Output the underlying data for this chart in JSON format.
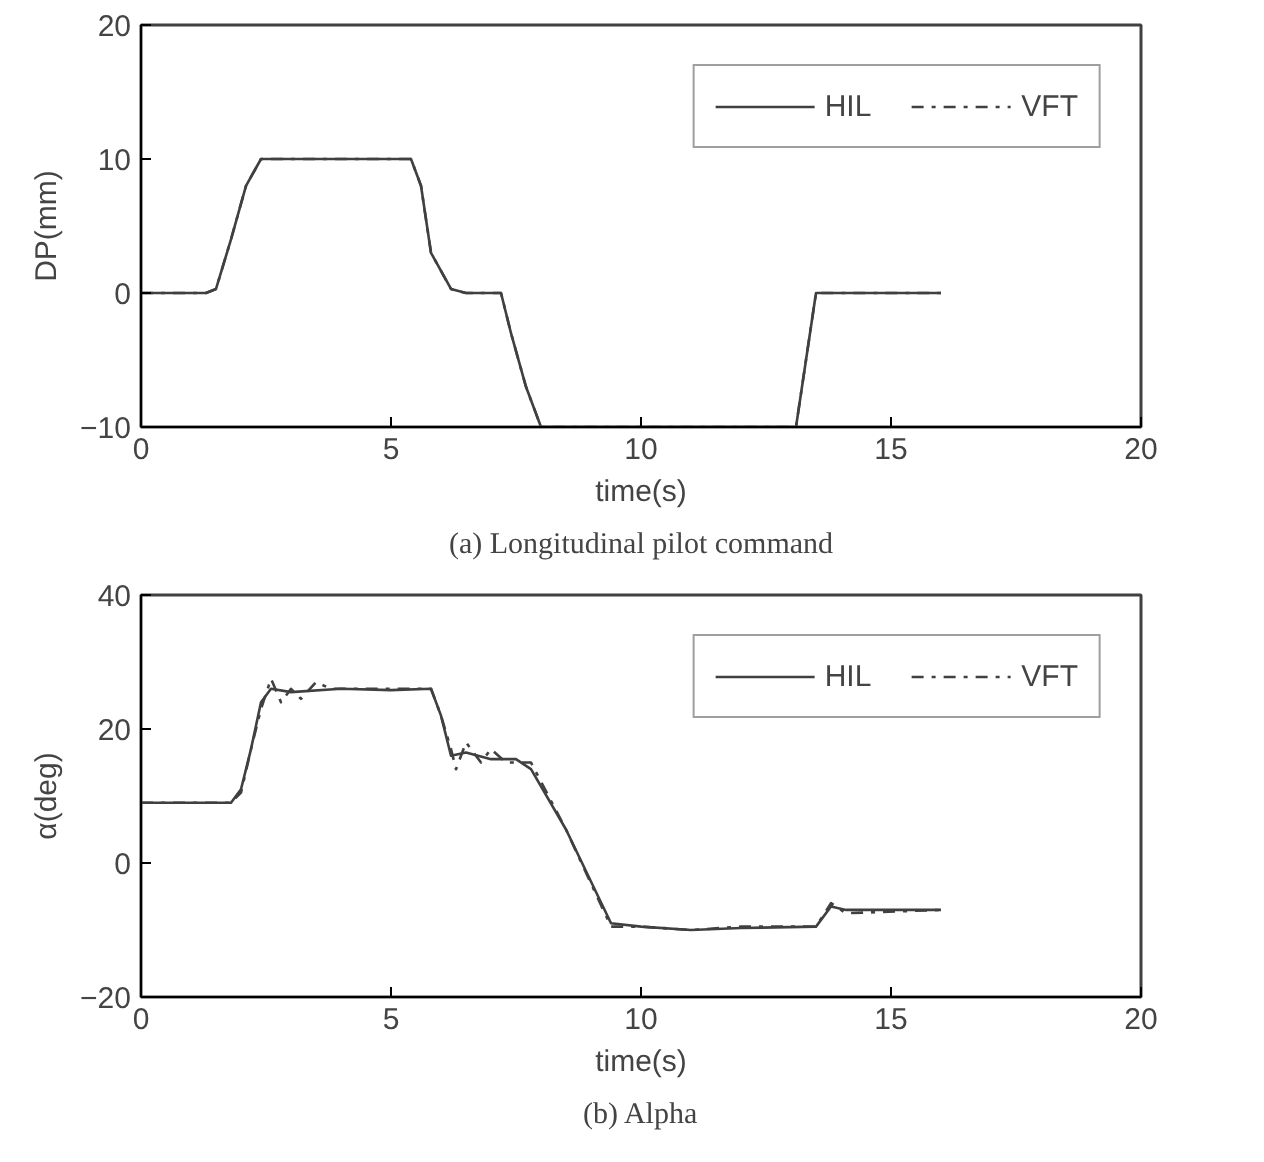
{
  "chart_data": [
    {
      "type": "line",
      "title": "(a) Longitudinal pilot command",
      "xlabel": "time(s)",
      "ylabel": "DP(mm)",
      "xlim": [
        0,
        20
      ],
      "ylim": [
        -10,
        20
      ],
      "xticks": [
        0,
        5,
        10,
        15,
        20
      ],
      "yticks": [
        -10,
        0,
        10,
        20
      ],
      "grid": false,
      "legend": "top right",
      "series": [
        {
          "name": "HIL",
          "color": "#404040",
          "line_style": "solid",
          "x": [
            0,
            1.3,
            1.5,
            1.8,
            2.1,
            2.4,
            5.4,
            5.6,
            5.8,
            6.2,
            6.5,
            7.2,
            7.4,
            7.7,
            8,
            13.1,
            13.3,
            13.5,
            16
          ],
          "values": [
            0,
            0,
            0.3,
            4,
            8,
            10,
            10,
            8,
            3,
            0.3,
            0,
            0,
            -3,
            -7,
            -10,
            -10,
            -5,
            0,
            0
          ]
        },
        {
          "name": "VFT",
          "color": "#404040",
          "line_style": "dashdot",
          "x": [
            0,
            1.3,
            1.5,
            1.8,
            2.1,
            2.4,
            5.4,
            5.6,
            5.8,
            6.2,
            6.5,
            7.2,
            7.4,
            7.7,
            8,
            13.1,
            13.3,
            13.5,
            16
          ],
          "values": [
            0,
            0,
            0.3,
            4,
            8,
            10,
            10,
            8,
            3,
            0.3,
            0,
            0,
            -3,
            -7,
            -10,
            -10,
            -5,
            0,
            0
          ]
        }
      ]
    },
    {
      "type": "line",
      "title": "(b) Alpha",
      "xlabel": "time(s)",
      "ylabel": "α(deg)",
      "xlim": [
        0,
        20
      ],
      "ylim": [
        -20,
        40
      ],
      "xticks": [
        0,
        5,
        10,
        15,
        20
      ],
      "yticks": [
        -20,
        0,
        20,
        40
      ],
      "grid": false,
      "legend": "top right",
      "series": [
        {
          "name": "HIL",
          "color": "#404040",
          "line_style": "solid",
          "x": [
            0,
            1.8,
            2.0,
            2.2,
            2.4,
            2.6,
            3,
            4,
            5,
            5.8,
            6.0,
            6.2,
            6.5,
            7,
            7.5,
            7.8,
            8.5,
            9.4,
            10,
            11,
            12,
            13.5,
            13.8,
            14.1,
            14.3,
            16
          ],
          "values": [
            9,
            9,
            11,
            17,
            24,
            26,
            25.5,
            26,
            25.8,
            26,
            22,
            16,
            16.5,
            15.5,
            15.5,
            14,
            5,
            -9,
            -9.5,
            -10,
            -9.7,
            -9.5,
            -6.5,
            -7,
            -7,
            -7
          ]
        },
        {
          "name": "VFT",
          "color": "#404040",
          "line_style": "dashdot",
          "x": [
            0,
            1.8,
            2,
            2.2,
            2.4,
            2.6,
            2.8,
            3.0,
            3.2,
            3.5,
            3.8,
            5,
            5.8,
            6.0,
            6.2,
            6.3,
            6.5,
            6.8,
            7,
            7.3,
            7.8,
            8.5,
            9.4,
            10,
            11,
            12,
            13.5,
            13.8,
            14.1,
            16
          ],
          "values": [
            9,
            9,
            10.5,
            17,
            23,
            27.5,
            24,
            26,
            24.5,
            27,
            26,
            26,
            26,
            22,
            17,
            14,
            18,
            15,
            17,
            15,
            15,
            5,
            -9.5,
            -9.5,
            -10,
            -9.5,
            -9.5,
            -6,
            -7.5,
            -7
          ]
        }
      ]
    }
  ]
}
